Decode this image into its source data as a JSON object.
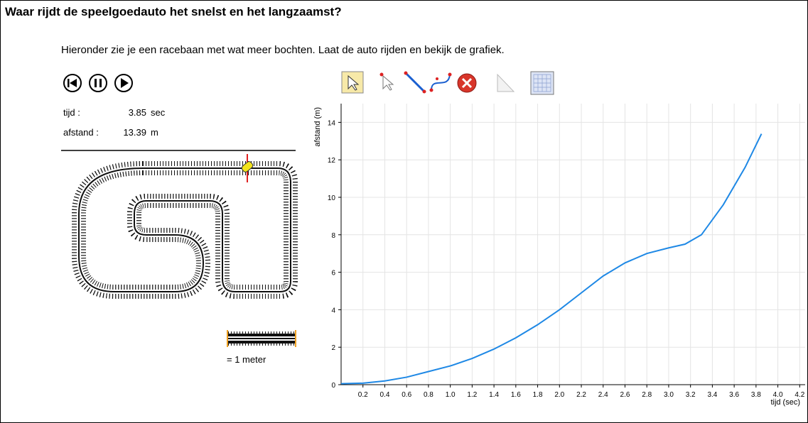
{
  "header": {
    "title": "Waar rijdt de speelgoedauto het snelst en het langzaamst?"
  },
  "instruction": "Hieronder zie je een racebaan met wat meer bochten. Laat de auto rijden en bekijk de grafiek.",
  "readout": {
    "time_label": "tijd :",
    "time_value": "3.85",
    "time_unit": "sec",
    "distance_label": "afstand :",
    "distance_value": "13.39",
    "distance_unit": "m"
  },
  "scale_label": "= 1 meter",
  "chart_data": {
    "type": "line",
    "xlabel": "tijd (sec)",
    "ylabel": "afstand (m)",
    "x": [
      0,
      0.2,
      0.4,
      0.6,
      0.8,
      1.0,
      1.2,
      1.4,
      1.6,
      1.8,
      2.0,
      2.2,
      2.4,
      2.6,
      2.8,
      3.0,
      3.15,
      3.3,
      3.5,
      3.7,
      3.85
    ],
    "values": [
      0.05,
      0.08,
      0.2,
      0.4,
      0.7,
      1.0,
      1.4,
      1.9,
      2.5,
      3.2,
      4.0,
      4.9,
      5.8,
      6.5,
      7.0,
      7.3,
      7.5,
      8.0,
      9.6,
      11.6,
      13.39
    ],
    "color": "#1e88e5",
    "xlim": [
      0,
      4.25
    ],
    "ylim": [
      0,
      15
    ],
    "xticks": [
      0.2,
      0.4,
      0.6,
      0.8,
      {
        "value": 1.0,
        "label": "1.0"
      },
      1.2,
      1.4,
      1.6,
      1.8,
      {
        "value": 2.0,
        "label": "2.0"
      },
      2.2,
      2.4,
      2.6,
      2.8,
      {
        "value": 3.0,
        "label": "3.0"
      },
      3.2,
      3.4,
      3.6,
      3.8,
      {
        "value": 4.0,
        "label": "4.0"
      },
      4.2
    ],
    "yticks": [
      0,
      2,
      4,
      6,
      8,
      10,
      12,
      14
    ],
    "grid": true
  }
}
